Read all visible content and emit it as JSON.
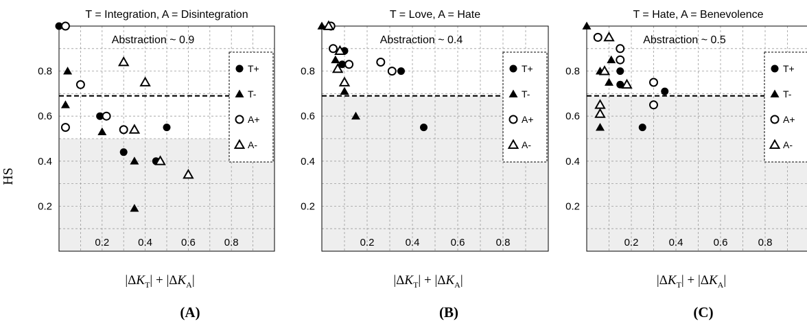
{
  "figure": {
    "ylabel": "HS",
    "xlabel_parts": [
      "|Δ",
      "K",
      "T",
      "| + |Δ",
      "K",
      "A",
      "|"
    ]
  },
  "legend": [
    "T+",
    "T-",
    "A+",
    "A-"
  ],
  "chart_data": [
    {
      "type": "scatter",
      "panel_label": "(A)",
      "title": "T = Integration, A = Disintegration",
      "annotation": "Abstraction ~ 0.9",
      "threshold": 0.69,
      "shaded_below": 0.5,
      "xlim": [
        0,
        1.0
      ],
      "ylim": [
        0,
        1.0
      ],
      "xticks": [
        0.2,
        0.4,
        0.6,
        0.8
      ],
      "yticks": [
        0.2,
        0.4,
        0.6,
        0.8
      ],
      "series": [
        {
          "name": "T+",
          "points": [
            [
              0.0,
              1.0
            ],
            [
              0.19,
              0.6
            ],
            [
              0.3,
              0.44
            ],
            [
              0.45,
              0.4
            ],
            [
              0.5,
              0.55
            ]
          ]
        },
        {
          "name": "T-",
          "points": [
            [
              0.04,
              0.8
            ],
            [
              0.03,
              0.65
            ],
            [
              0.2,
              0.53
            ],
            [
              0.35,
              0.4
            ],
            [
              0.35,
              0.19
            ]
          ]
        },
        {
          "name": "A+",
          "points": [
            [
              0.03,
              1.0
            ],
            [
              0.1,
              0.74
            ],
            [
              0.03,
              0.55
            ],
            [
              0.22,
              0.6
            ],
            [
              0.3,
              0.54
            ]
          ]
        },
        {
          "name": "A-",
          "points": [
            [
              0.3,
              0.84
            ],
            [
              0.4,
              0.75
            ],
            [
              0.35,
              0.54
            ],
            [
              0.47,
              0.4
            ],
            [
              0.6,
              0.34
            ]
          ]
        }
      ]
    },
    {
      "type": "scatter",
      "panel_label": "(B)",
      "title": "T = Love, A = Hate",
      "annotation": "Abstraction ~ 0.4",
      "threshold": 0.69,
      "shaded_below": 0.69,
      "xlim": [
        0,
        1.0
      ],
      "ylim": [
        0,
        1.0
      ],
      "xticks": [
        0.2,
        0.4,
        0.6,
        0.8
      ],
      "yticks": [
        0.2,
        0.4,
        0.6,
        0.8
      ],
      "series": [
        {
          "name": "T+",
          "points": [
            [
              0.1,
              0.89
            ],
            [
              0.09,
              0.83
            ],
            [
              0.35,
              0.8
            ],
            [
              0.45,
              0.55
            ]
          ]
        },
        {
          "name": "T-",
          "points": [
            [
              0.0,
              1.0
            ],
            [
              0.06,
              0.85
            ],
            [
              0.1,
              0.71
            ],
            [
              0.15,
              0.6
            ]
          ]
        },
        {
          "name": "A+",
          "points": [
            [
              0.04,
              1.0
            ],
            [
              0.05,
              0.9
            ],
            [
              0.12,
              0.83
            ],
            [
              0.26,
              0.84
            ],
            [
              0.31,
              0.8
            ]
          ]
        },
        {
          "name": "A-",
          "points": [
            [
              0.03,
              1.0
            ],
            [
              0.08,
              0.89
            ],
            [
              0.07,
              0.81
            ],
            [
              0.1,
              0.75
            ]
          ]
        }
      ]
    },
    {
      "type": "scatter",
      "panel_label": "(C)",
      "title": "T = Hate, A = Benevolence",
      "annotation": "Abstraction ~ 0.5",
      "threshold": 0.69,
      "shaded_below": 0.69,
      "xlim": [
        0,
        1.0
      ],
      "ylim": [
        0,
        1.0
      ],
      "xticks": [
        0.2,
        0.4,
        0.6,
        0.8
      ],
      "yticks": [
        0.2,
        0.4,
        0.6,
        0.8
      ],
      "series": [
        {
          "name": "T+",
          "points": [
            [
              0.15,
              0.8
            ],
            [
              0.15,
              0.74
            ],
            [
              0.35,
              0.71
            ],
            [
              0.25,
              0.55
            ]
          ]
        },
        {
          "name": "T-",
          "points": [
            [
              0.0,
              1.0
            ],
            [
              0.11,
              0.85
            ],
            [
              0.06,
              0.8
            ],
            [
              0.1,
              0.75
            ],
            [
              0.06,
              0.55
            ]
          ]
        },
        {
          "name": "A+",
          "points": [
            [
              0.05,
              0.95
            ],
            [
              0.15,
              0.9
            ],
            [
              0.15,
              0.85
            ],
            [
              0.3,
              0.75
            ],
            [
              0.3,
              0.65
            ]
          ]
        },
        {
          "name": "A-",
          "points": [
            [
              0.1,
              0.95
            ],
            [
              0.08,
              0.8
            ],
            [
              0.18,
              0.74
            ],
            [
              0.06,
              0.65
            ],
            [
              0.06,
              0.61
            ]
          ]
        }
      ]
    }
  ]
}
